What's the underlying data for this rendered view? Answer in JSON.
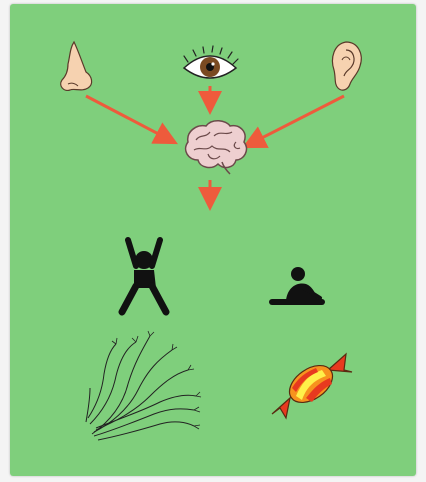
{
  "colors": {
    "background": "#7fcf7c",
    "arrow": "#ee5b3c",
    "skin": "#f6d2b0",
    "skin_outline": "#5a3a2a",
    "iris": "#7a4a22",
    "brain_fill": "#eecfd0",
    "figure": "#111111",
    "candy_red": "#e8391f",
    "candy_orange": "#f7931e",
    "candy_yellow": "#fff04a"
  },
  "icons": {
    "nose": "nose-icon",
    "eye": "eye-icon",
    "ear": "ear-icon",
    "brain": "brain-icon",
    "stretch": "stretching-person-icon",
    "sit_stretch": "sitting-stretch-icon",
    "nerve": "nerve-fiber-icon",
    "candy": "candy-icon"
  }
}
